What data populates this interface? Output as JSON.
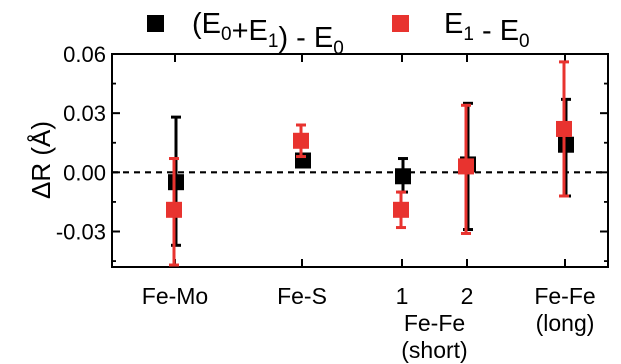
{
  "chart_data": {
    "type": "scatter",
    "title": "",
    "xlabel": "",
    "ylabel": "ΔR (Å)",
    "ylim": [
      -0.048,
      0.06
    ],
    "yticks": [
      0.06,
      0.03,
      0.0,
      -0.03
    ],
    "ytick_labels": [
      "0.06",
      "0.03",
      "0.00",
      "-0.03"
    ],
    "grid": false,
    "legend_position": "top",
    "reference_line": {
      "y": 0.0,
      "style": "dashed"
    },
    "categories": [
      {
        "key": "femo",
        "lines": [
          "Fe-Mo"
        ]
      },
      {
        "key": "fes",
        "lines": [
          "Fe-S"
        ]
      },
      {
        "key": "fefe1",
        "lines": [
          "1"
        ]
      },
      {
        "key": "fefe2",
        "lines": [
          "2"
        ]
      },
      {
        "key": "fefel",
        "lines": [
          "Fe-Fe",
          "(long)"
        ]
      }
    ],
    "group_labels": [
      {
        "spans": [
          "fefe1",
          "fefe2"
        ],
        "lines": [
          "Fe-Fe",
          "(short)"
        ]
      }
    ],
    "series": [
      {
        "name": "(E0+E1) - E0",
        "color": "#000000",
        "points": [
          {
            "category": "femo",
            "y": -0.005,
            "err_low": -0.037,
            "err_high": 0.028
          },
          {
            "category": "fes",
            "y": 0.006,
            "err_low": 0.003,
            "err_high": 0.009
          },
          {
            "category": "fefe1",
            "y": -0.002,
            "err_low": -0.01,
            "err_high": 0.007
          },
          {
            "category": "fefe2",
            "y": 0.004,
            "err_low": -0.029,
            "err_high": 0.035
          },
          {
            "category": "fefel",
            "y": 0.014,
            "err_low": -0.012,
            "err_high": 0.037
          }
        ]
      },
      {
        "name": "E1 - E0",
        "color": "#e8332f",
        "points": [
          {
            "category": "femo",
            "y": -0.019,
            "err_low": -0.047,
            "err_high": 0.007
          },
          {
            "category": "fes",
            "y": 0.016,
            "err_low": 0.008,
            "err_high": 0.024
          },
          {
            "category": "fefe1",
            "y": -0.019,
            "err_low": -0.028,
            "err_high": -0.01
          },
          {
            "category": "fefe2",
            "y": 0.003,
            "err_low": -0.031,
            "err_high": 0.034
          },
          {
            "category": "fefel",
            "y": 0.022,
            "err_low": -0.012,
            "err_high": 0.056
          }
        ]
      }
    ],
    "legend": [
      {
        "series_index": 0,
        "label_parts": [
          {
            "t": "(E",
            "sub": false
          },
          {
            "t": "0",
            "sub": true
          },
          {
            "t": "+E",
            "sub": false
          },
          {
            "t": "1",
            "sub": true
          },
          {
            "t": ") - E",
            "sub": false
          },
          {
            "t": "0",
            "sub": true
          }
        ]
      },
      {
        "series_index": 1,
        "label_parts": [
          {
            "t": "E",
            "sub": false
          },
          {
            "t": "1",
            "sub": true
          },
          {
            "t": " - E",
            "sub": false
          },
          {
            "t": "0",
            "sub": true
          }
        ]
      }
    ]
  }
}
